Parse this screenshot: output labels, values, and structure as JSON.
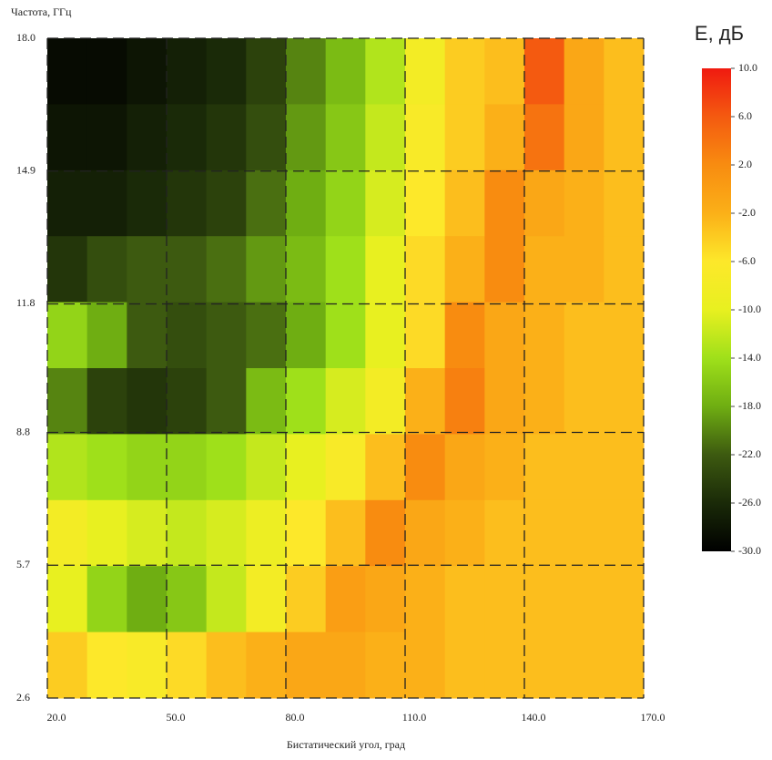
{
  "chart_data": {
    "type": "heatmap",
    "ylabel": "Частота, ГГц",
    "xlabel": "Бистатический угол, град",
    "colorbar_title": "E, дБ",
    "xlim": [
      20,
      170
    ],
    "ylim": [
      2.6,
      18.0
    ],
    "xticks": [
      {
        "value": 20,
        "label": "20.0"
      },
      {
        "value": 50,
        "label": "50.0"
      },
      {
        "value": 80,
        "label": "80.0"
      },
      {
        "value": 110,
        "label": "110.0"
      },
      {
        "value": 140,
        "label": "140.0"
      },
      {
        "value": 170,
        "label": "170.0"
      }
    ],
    "yticks": [
      2.6,
      5.7,
      8.8,
      11.8,
      14.9,
      {
        "value": 18,
        "label": "18.0"
      }
    ],
    "grid": true,
    "x": [
      25,
      35,
      45,
      55,
      65,
      75,
      85,
      95,
      105,
      115,
      125,
      135,
      145,
      155,
      165
    ],
    "y": [
      17.23,
      15.69,
      14.15,
      12.61,
      11.07,
      9.53,
      7.99,
      6.45,
      4.91,
      3.37
    ],
    "z": [
      [
        -29,
        -29,
        -28,
        -27,
        -26,
        -24,
        -20,
        -17,
        -13,
        -8,
        -4,
        -3,
        6,
        -1,
        -3
      ],
      [
        -28,
        -28,
        -27,
        -26,
        -25,
        -23,
        -19,
        -16,
        -12,
        -7,
        -4,
        -2,
        4,
        -1,
        -3
      ],
      [
        -27,
        -27,
        -26,
        -25,
        -24,
        -21,
        -18,
        -15,
        -11,
        -6,
        -3,
        2,
        -1,
        -2,
        -3
      ],
      [
        -25,
        -23,
        -22,
        -22,
        -21,
        -19,
        -17,
        -14,
        -10,
        -5,
        -2,
        2,
        -2,
        -2,
        -3
      ],
      [
        -15,
        -18,
        -22,
        -23,
        -22,
        -21,
        -18,
        -14,
        -10,
        -5,
        2,
        -1,
        -2,
        -3,
        -3
      ],
      [
        -20,
        -24,
        -25,
        -24,
        -22,
        -17,
        -14,
        -11,
        -8,
        -2,
        3,
        -1,
        -2,
        -3,
        -3
      ],
      [
        -13,
        -14,
        -15,
        -15,
        -14,
        -12,
        -10,
        -7,
        -3,
        2,
        -1,
        -2,
        -3,
        -3,
        -3
      ],
      [
        -8,
        -10,
        -11,
        -12,
        -11,
        -9,
        -6,
        -3,
        2,
        -1,
        -2,
        -3,
        -3,
        -3,
        -3
      ],
      [
        -10,
        -15,
        -18,
        -16,
        -12,
        -8,
        -4,
        0,
        -1,
        -2,
        -3,
        -3,
        -3,
        -3,
        -3
      ],
      [
        -4,
        -6,
        -7,
        -5,
        -3,
        -2,
        -1,
        -1,
        -2,
        -2,
        -3,
        -3,
        -3,
        -3,
        -3
      ]
    ],
    "zlim": [
      -30,
      10
    ],
    "zticks": [
      {
        "value": 10,
        "label": "10.0"
      },
      {
        "value": 6,
        "label": "6.0"
      },
      {
        "value": 2,
        "label": "2.0"
      },
      {
        "value": -2,
        "label": "-2.0"
      },
      {
        "value": -6,
        "label": "-6.0"
      },
      {
        "value": -10,
        "label": "-10.0"
      },
      {
        "value": -14,
        "label": "-14.0"
      },
      {
        "value": -18,
        "label": "-18.0"
      },
      {
        "value": -22,
        "label": "-22.0"
      },
      {
        "value": -26,
        "label": "-26.0"
      },
      {
        "value": -30,
        "label": "-30.0"
      }
    ],
    "colorscale": [
      "#f01a10",
      "#f45a10",
      "#f88c10",
      "#fbb018",
      "#fde82a",
      "#e8f020",
      "#9fe01a",
      "#6fae12",
      "#3d5a10",
      "#1a2a08",
      "#000000"
    ]
  }
}
